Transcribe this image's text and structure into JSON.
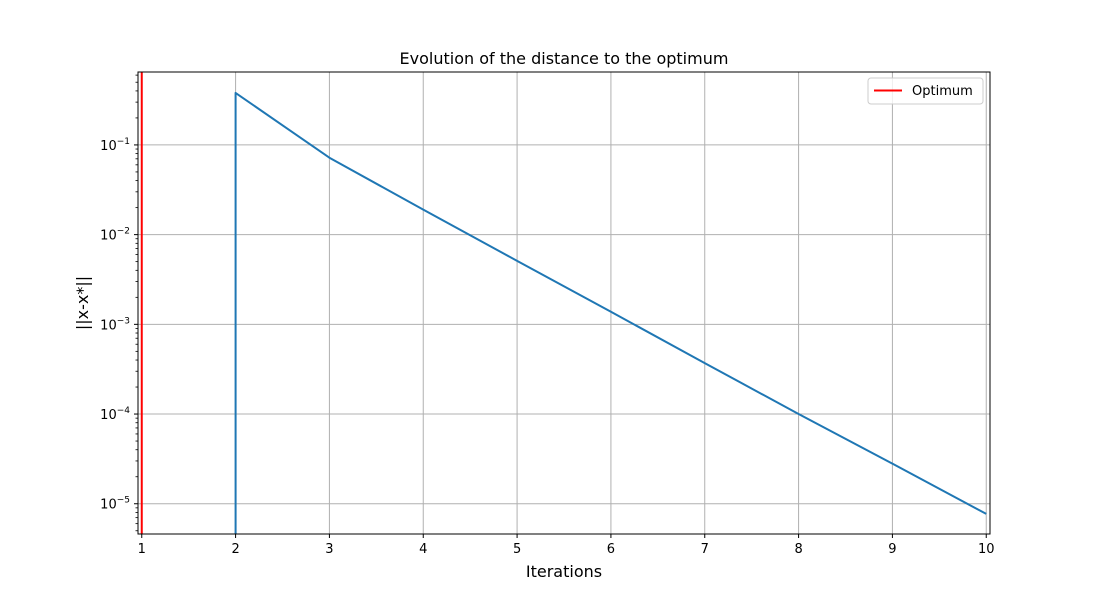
{
  "chart_data": {
    "type": "line",
    "title": "Evolution of the distance to the optimum",
    "xlabel": "Iterations",
    "ylabel": "||x-x*||",
    "xlim": [
      0.96,
      10.04
    ],
    "ylim": [
      4.6e-06,
      0.65
    ],
    "yscale": "log",
    "xticks": [
      1,
      2,
      3,
      4,
      5,
      6,
      7,
      8,
      9,
      10
    ],
    "yticks": [
      1e-05,
      0.0001,
      0.001,
      0.01,
      0.1
    ],
    "ytick_labels": [
      {
        "base": "10",
        "exp": "−5"
      },
      {
        "base": "10",
        "exp": "−4"
      },
      {
        "base": "10",
        "exp": "−3"
      },
      {
        "base": "10",
        "exp": "−2"
      },
      {
        "base": "10",
        "exp": "−1"
      }
    ],
    "grid": true,
    "legend": {
      "position": "top-right",
      "entries": [
        "Optimum"
      ]
    },
    "series": [
      {
        "color": "#1f77b4",
        "x": [
          2,
          2,
          3,
          4,
          5,
          6,
          7,
          8,
          9,
          10
        ],
        "y": [
          4.6e-06,
          0.38,
          0.072,
          0.019,
          0.0051,
          0.00138,
          0.00037,
          0.0001,
          2.8e-05,
          7.7e-06
        ]
      }
    ],
    "vlines": [
      {
        "name": "Optimum",
        "x": 1,
        "color": "#ff0000"
      }
    ]
  }
}
